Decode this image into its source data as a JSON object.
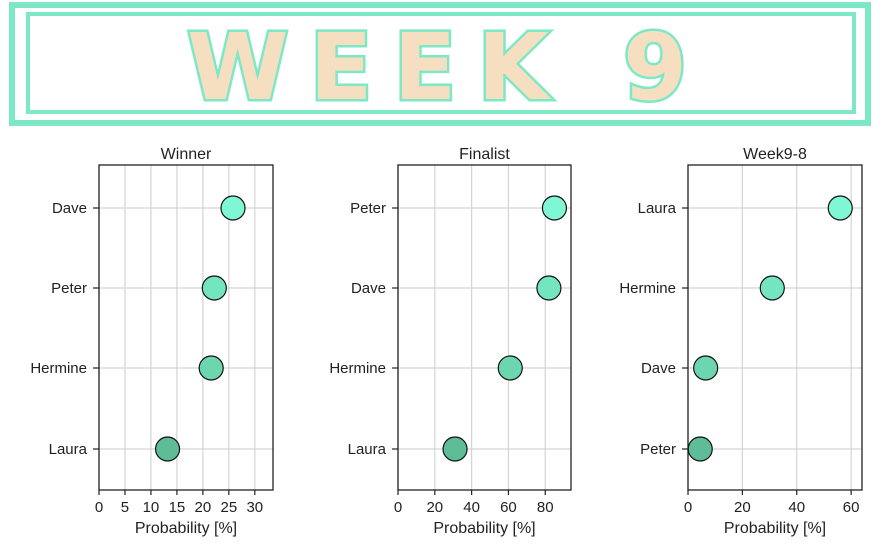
{
  "banner": {
    "title": "WEEK 9",
    "fill_color": "#f6dfc0",
    "stroke_color": "#7de8c5"
  },
  "chart_data": [
    {
      "type": "scatter",
      "title": "Winner",
      "xlabel": "Probability [%]",
      "ylabel": "",
      "categories": [
        "Dave",
        "Peter",
        "Hermine",
        "Laura"
      ],
      "values": [
        25.8,
        22.2,
        21.6,
        13.2
      ],
      "colors": [
        "#7ff7d4",
        "#74e5c0",
        "#6cd6ae",
        "#5ebd96"
      ],
      "xlim": [
        0,
        33.5
      ],
      "xticks": [
        0,
        5,
        10,
        15,
        20,
        25,
        30
      ],
      "grid": true
    },
    {
      "type": "scatter",
      "title": "Finalist",
      "xlabel": "Probability [%]",
      "ylabel": "",
      "categories": [
        "Peter",
        "Dave",
        "Hermine",
        "Laura"
      ],
      "values": [
        85,
        82,
        61,
        31
      ],
      "colors": [
        "#7ff7d4",
        "#74e5c0",
        "#6cd6ae",
        "#5ebd96"
      ],
      "xlim": [
        0,
        94
      ],
      "xticks": [
        0,
        20,
        40,
        60,
        80
      ],
      "grid": true
    },
    {
      "type": "scatter",
      "title": "Week9-8",
      "xlabel": "Probability [%]",
      "ylabel": "",
      "categories": [
        "Laura",
        "Hermine",
        "Dave",
        "Peter"
      ],
      "values": [
        56,
        31,
        6.5,
        4.5
      ],
      "colors": [
        "#7ff7d4",
        "#74e5c0",
        "#6cd6ae",
        "#5ebd96"
      ],
      "xlim": [
        0,
        64
      ],
      "xticks": [
        0,
        20,
        40,
        60
      ],
      "grid": true
    }
  ]
}
